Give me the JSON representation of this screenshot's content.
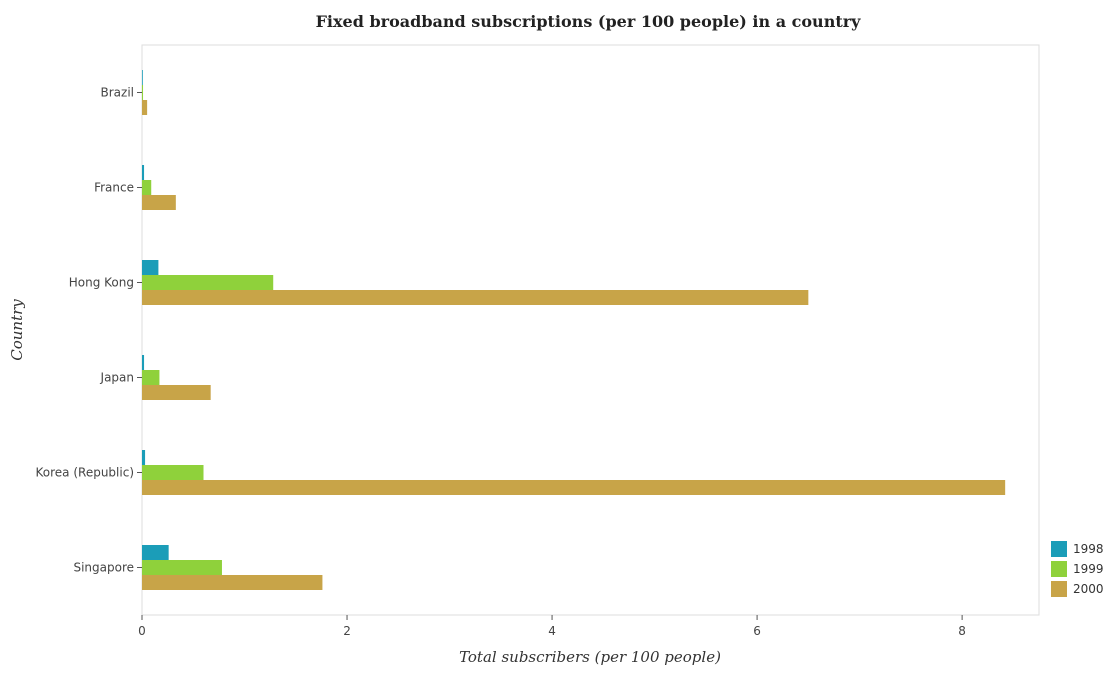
{
  "chart_data": {
    "type": "bar",
    "orientation": "horizontal",
    "title": "Fixed broadband subscriptions (per 100 people) in a country",
    "xlabel": "Total subscribers (per 100 people)",
    "ylabel": "Country",
    "xlim": [
      0,
      8.75
    ],
    "xticks": [
      0,
      2,
      4,
      6,
      8
    ],
    "categories": [
      "Brazil",
      "France",
      "Hong Kong",
      "Japan",
      "Korea (Republic)",
      "Singapore"
    ],
    "series": [
      {
        "name": "1998",
        "color": "#1b9db8",
        "values": [
          0.0,
          0.02,
          0.16,
          0.02,
          0.03,
          0.26
        ]
      },
      {
        "name": "1999",
        "color": "#8fd13b",
        "values": [
          0.01,
          0.09,
          1.28,
          0.17,
          0.6,
          0.78
        ]
      },
      {
        "name": "2000",
        "color": "#c8a448",
        "values": [
          0.05,
          0.33,
          6.5,
          0.67,
          8.42,
          1.76
        ]
      }
    ],
    "legend": {
      "position": "bottom-right"
    },
    "grid": false
  }
}
